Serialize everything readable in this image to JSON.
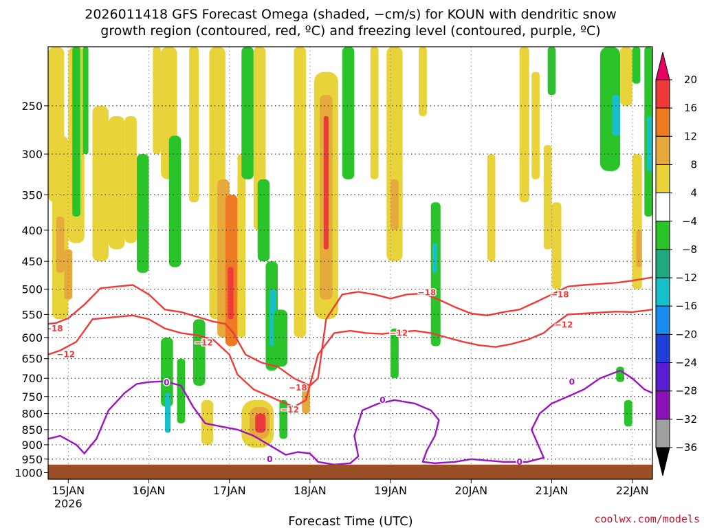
{
  "chart_data": {
    "type": "heatmap",
    "title_line1": "2026011418 GFS Forecast Omega (shaded, −cm/s) for KOUN with dendritic snow",
    "title_line2": "growth region (contoured, red, ºC) and freezing level (contoured, purple, ºC)",
    "xlabel": "Forecast Time (UTC)",
    "credit": "coolwx.com/models",
    "x_ticks": [
      {
        "day": 15,
        "label": "15JAN"
      },
      {
        "day": 16,
        "label": "16JAN"
      },
      {
        "day": 17,
        "label": "17JAN"
      },
      {
        "day": 18,
        "label": "18JAN"
      },
      {
        "day": 19,
        "label": "19JAN"
      },
      {
        "day": 20,
        "label": "20JAN"
      },
      {
        "day": 21,
        "label": "21JAN"
      },
      {
        "day": 22,
        "label": "22JAN"
      }
    ],
    "x_year_label": "2026",
    "xlim_days": [
      14.75,
      22.25
    ],
    "y_ticks": [
      250,
      300,
      350,
      400,
      450,
      500,
      550,
      600,
      650,
      700,
      750,
      800,
      850,
      900,
      950,
      1000
    ],
    "ylim_hpa": [
      200,
      1025
    ],
    "y_scale": "log-pressure",
    "grid": "dotted",
    "surface_pressure_hpa": 970,
    "surface_color": "#9b4f26",
    "colorbar": {
      "levels": [
        -36,
        -32,
        -28,
        -24,
        -20,
        -16,
        -12,
        -8,
        -4,
        4,
        8,
        12,
        16,
        20
      ],
      "labels": [
        "20",
        "16",
        "12",
        "8",
        "4",
        "−4",
        "−8",
        "−12",
        "−16",
        "−20",
        "−24",
        "−28",
        "−32",
        "−36"
      ],
      "colors_top_to_bottom": [
        "#e60063",
        "#ef3a3a",
        "#ee7a22",
        "#e6aa3c",
        "#e8d43a",
        "#ffffff",
        "#2ac42a",
        "#1eaa7e",
        "#17c0c8",
        "#1a8cf0",
        "#1f3fd8",
        "#5a1ed0",
        "#8a10b8",
        "#a0a0a0",
        "#000000"
      ]
    },
    "omega_cells": [
      {
        "x0": 14.75,
        "x1": 14.95,
        "p0": 200,
        "p1": 360,
        "value": 5
      },
      {
        "x0": 14.8,
        "x1": 15.0,
        "p0": 280,
        "p1": 560,
        "value": 6
      },
      {
        "x0": 14.85,
        "x1": 14.95,
        "p0": 380,
        "p1": 470,
        "value": 10
      },
      {
        "x0": 14.95,
        "x1": 15.05,
        "p0": 430,
        "p1": 520,
        "value": 9
      },
      {
        "x0": 15.0,
        "x1": 15.2,
        "p0": 200,
        "p1": 420,
        "value": 6
      },
      {
        "x0": 15.05,
        "x1": 15.15,
        "p0": 200,
        "p1": 380,
        "value": -6
      },
      {
        "x0": 15.18,
        "x1": 15.25,
        "p0": 200,
        "p1": 300,
        "value": -6
      },
      {
        "x0": 15.3,
        "x1": 15.5,
        "p0": 250,
        "p1": 450,
        "value": 5
      },
      {
        "x0": 15.5,
        "x1": 15.7,
        "p0": 260,
        "p1": 430,
        "value": 5
      },
      {
        "x0": 15.7,
        "x1": 15.85,
        "p0": 260,
        "p1": 420,
        "value": 5
      },
      {
        "x0": 15.85,
        "x1": 16.0,
        "p0": 300,
        "p1": 470,
        "value": -6
      },
      {
        "x0": 16.05,
        "x1": 16.15,
        "p0": 200,
        "p1": 300,
        "value": 5
      },
      {
        "x0": 16.15,
        "x1": 16.35,
        "p0": 200,
        "p1": 330,
        "value": 6
      },
      {
        "x0": 16.25,
        "x1": 16.4,
        "p0": 280,
        "p1": 460,
        "value": -6
      },
      {
        "x0": 16.15,
        "x1": 16.3,
        "p0": 600,
        "p1": 780,
        "value": -6
      },
      {
        "x0": 16.2,
        "x1": 16.27,
        "p0": 740,
        "p1": 860,
        "value": -13
      },
      {
        "x0": 16.35,
        "x1": 16.45,
        "p0": 650,
        "p1": 830,
        "value": -6
      },
      {
        "x0": 16.5,
        "x1": 16.62,
        "p0": 200,
        "p1": 360,
        "value": 6
      },
      {
        "x0": 16.55,
        "x1": 16.7,
        "p0": 560,
        "p1": 720,
        "value": -6
      },
      {
        "x0": 16.65,
        "x1": 16.8,
        "p0": 760,
        "p1": 900,
        "value": 5
      },
      {
        "x0": 16.75,
        "x1": 16.95,
        "p0": 200,
        "p1": 560,
        "value": 5
      },
      {
        "x0": 16.85,
        "x1": 17.0,
        "p0": 330,
        "p1": 600,
        "value": 10
      },
      {
        "x0": 16.95,
        "x1": 17.1,
        "p0": 350,
        "p1": 620,
        "value": 14
      },
      {
        "x0": 16.98,
        "x1": 17.05,
        "p0": 460,
        "p1": 560,
        "value": 19
      },
      {
        "x0": 17.1,
        "x1": 17.2,
        "p0": 300,
        "p1": 600,
        "value": 6
      },
      {
        "x0": 17.15,
        "x1": 17.3,
        "p0": 200,
        "p1": 330,
        "value": -6
      },
      {
        "x0": 17.3,
        "x1": 17.45,
        "p0": 200,
        "p1": 400,
        "value": 5
      },
      {
        "x0": 17.35,
        "x1": 17.5,
        "p0": 330,
        "p1": 450,
        "value": -6
      },
      {
        "x0": 17.45,
        "x1": 17.6,
        "p0": 450,
        "p1": 680,
        "value": -6
      },
      {
        "x0": 17.5,
        "x1": 17.58,
        "p0": 500,
        "p1": 620,
        "value": -13
      },
      {
        "x0": 17.55,
        "x1": 17.72,
        "p0": 540,
        "p1": 670,
        "value": -6
      },
      {
        "x0": 17.15,
        "x1": 17.55,
        "p0": 760,
        "p1": 910,
        "value": 6
      },
      {
        "x0": 17.25,
        "x1": 17.5,
        "p0": 780,
        "p1": 880,
        "value": 10
      },
      {
        "x0": 17.32,
        "x1": 17.45,
        "p0": 800,
        "p1": 860,
        "value": 17
      },
      {
        "x0": 17.62,
        "x1": 17.72,
        "p0": 760,
        "p1": 880,
        "value": -6
      },
      {
        "x0": 17.8,
        "x1": 17.95,
        "p0": 200,
        "p1": 600,
        "value": 5
      },
      {
        "x0": 17.9,
        "x1": 18.0,
        "p0": 720,
        "p1": 800,
        "value": 8
      },
      {
        "x0": 18.05,
        "x1": 18.35,
        "p0": 220,
        "p1": 560,
        "value": 6
      },
      {
        "x0": 18.12,
        "x1": 18.28,
        "p0": 240,
        "p1": 520,
        "value": 11
      },
      {
        "x0": 18.17,
        "x1": 18.23,
        "p0": 260,
        "p1": 430,
        "value": 19
      },
      {
        "x0": 18.4,
        "x1": 18.55,
        "p0": 200,
        "p1": 330,
        "value": -6
      },
      {
        "x0": 18.75,
        "x1": 18.85,
        "p0": 200,
        "p1": 330,
        "value": 5
      },
      {
        "x0": 18.95,
        "x1": 19.15,
        "p0": 200,
        "p1": 450,
        "value": 5
      },
      {
        "x0": 19.0,
        "x1": 19.1,
        "p0": 330,
        "p1": 400,
        "value": 9
      },
      {
        "x0": 19.0,
        "x1": 19.1,
        "p0": 580,
        "p1": 700,
        "value": -6
      },
      {
        "x0": 19.35,
        "x1": 19.45,
        "p0": 200,
        "p1": 260,
        "value": 5
      },
      {
        "x0": 19.5,
        "x1": 19.62,
        "p0": 360,
        "p1": 620,
        "value": -6
      },
      {
        "x0": 19.52,
        "x1": 19.58,
        "p0": 420,
        "p1": 470,
        "value": -13
      },
      {
        "x0": 20.2,
        "x1": 20.3,
        "p0": 300,
        "p1": 450,
        "value": 5
      },
      {
        "x0": 20.6,
        "x1": 20.72,
        "p0": 200,
        "p1": 360,
        "value": 5
      },
      {
        "x0": 20.75,
        "x1": 20.85,
        "p0": 220,
        "p1": 330,
        "value": 5
      },
      {
        "x0": 20.9,
        "x1": 21.0,
        "p0": 290,
        "p1": 430,
        "value": 5
      },
      {
        "x0": 21.0,
        "x1": 21.12,
        "p0": 360,
        "p1": 500,
        "value": 5
      },
      {
        "x0": 20.95,
        "x1": 21.05,
        "p0": 200,
        "p1": 240,
        "value": -6
      },
      {
        "x0": 21.6,
        "x1": 21.85,
        "p0": 200,
        "p1": 320,
        "value": -6
      },
      {
        "x0": 21.75,
        "x1": 21.85,
        "p0": 240,
        "p1": 280,
        "value": -13
      },
      {
        "x0": 21.85,
        "x1": 22.0,
        "p0": 200,
        "p1": 250,
        "value": 5
      },
      {
        "x0": 22.0,
        "x1": 22.12,
        "p0": 300,
        "p1": 500,
        "value": 5
      },
      {
        "x0": 22.05,
        "x1": 22.12,
        "p0": 400,
        "p1": 460,
        "value": 10
      },
      {
        "x0": 22.0,
        "x1": 22.1,
        "p0": 200,
        "p1": 230,
        "value": -6
      },
      {
        "x0": 22.15,
        "x1": 22.25,
        "p0": 200,
        "p1": 380,
        "value": -6
      },
      {
        "x0": 22.18,
        "x1": 22.25,
        "p0": 260,
        "p1": 320,
        "value": -13
      },
      {
        "x0": 21.8,
        "x1": 21.9,
        "p0": 670,
        "p1": 710,
        "value": -6
      },
      {
        "x0": 21.9,
        "x1": 22.0,
        "p0": 760,
        "p1": 840,
        "value": -6
      }
    ],
    "contours": [
      {
        "name": "−18",
        "color": "#ef3a3a",
        "points": [
          [
            14.75,
            570
          ],
          [
            14.85,
            568
          ],
          [
            15.0,
            558
          ],
          [
            15.2,
            530
          ],
          [
            15.4,
            498
          ],
          [
            15.6,
            495
          ],
          [
            15.8,
            492
          ],
          [
            16.0,
            510
          ],
          [
            16.2,
            540
          ],
          [
            16.4,
            545
          ],
          [
            16.6,
            555
          ],
          [
            16.8,
            565
          ],
          [
            16.95,
            570
          ],
          [
            17.05,
            590
          ],
          [
            17.2,
            640
          ],
          [
            17.4,
            660
          ],
          [
            17.6,
            670
          ],
          [
            17.8,
            700
          ],
          [
            18.0,
            720
          ],
          [
            18.1,
            700
          ],
          [
            18.2,
            560
          ],
          [
            18.4,
            510
          ],
          [
            18.6,
            505
          ],
          [
            18.8,
            510
          ],
          [
            19.0,
            518
          ],
          [
            19.2,
            510
          ],
          [
            19.4,
            508
          ],
          [
            19.6,
            520
          ],
          [
            19.8,
            535
          ],
          [
            20.0,
            548
          ],
          [
            20.2,
            552
          ],
          [
            20.4,
            545
          ],
          [
            20.6,
            540
          ],
          [
            20.8,
            525
          ],
          [
            21.0,
            510
          ],
          [
            21.2,
            495
          ],
          [
            21.4,
            492
          ],
          [
            21.6,
            490
          ],
          [
            21.8,
            488
          ],
          [
            22.0,
            484
          ],
          [
            22.25,
            478
          ]
        ],
        "labels": [
          {
            "x": 14.82,
            "p": 580
          },
          {
            "x": 17.85,
            "p": 726
          },
          {
            "x": 19.45,
            "p": 506
          },
          {
            "x": 21.1,
            "p": 510
          }
        ]
      },
      {
        "name": "−12",
        "color": "#ef3a3a",
        "points": [
          [
            14.75,
            640
          ],
          [
            14.9,
            630
          ],
          [
            15.1,
            610
          ],
          [
            15.3,
            560
          ],
          [
            15.6,
            555
          ],
          [
            15.8,
            552
          ],
          [
            16.0,
            560
          ],
          [
            16.2,
            580
          ],
          [
            16.4,
            590
          ],
          [
            16.6,
            595
          ],
          [
            16.8,
            605
          ],
          [
            17.0,
            640
          ],
          [
            17.1,
            690
          ],
          [
            17.3,
            730
          ],
          [
            17.6,
            760
          ],
          [
            17.8,
            780
          ],
          [
            17.95,
            760
          ],
          [
            18.1,
            640
          ],
          [
            18.3,
            590
          ],
          [
            18.5,
            585
          ],
          [
            18.7,
            590
          ],
          [
            18.9,
            592
          ],
          [
            19.1,
            588
          ],
          [
            19.3,
            585
          ],
          [
            19.5,
            590
          ],
          [
            19.7,
            600
          ],
          [
            19.9,
            610
          ],
          [
            20.1,
            618
          ],
          [
            20.3,
            622
          ],
          [
            20.5,
            615
          ],
          [
            20.7,
            605
          ],
          [
            20.9,
            590
          ],
          [
            21.0,
            575
          ],
          [
            21.2,
            550
          ],
          [
            21.4,
            548
          ],
          [
            21.6,
            546
          ],
          [
            21.8,
            544
          ],
          [
            22.0,
            545
          ],
          [
            22.25,
            540
          ]
        ],
        "labels": [
          {
            "x": 14.97,
            "p": 640
          },
          {
            "x": 16.68,
            "p": 612
          },
          {
            "x": 17.75,
            "p": 788
          },
          {
            "x": 19.1,
            "p": 590
          },
          {
            "x": 21.15,
            "p": 572
          }
        ]
      },
      {
        "name": "0",
        "color": "#9b12c0",
        "points": [
          [
            14.75,
            880
          ],
          [
            14.9,
            870
          ],
          [
            15.1,
            900
          ],
          [
            15.2,
            930
          ],
          [
            15.35,
            880
          ],
          [
            15.5,
            790
          ],
          [
            15.7,
            740
          ],
          [
            15.85,
            715
          ],
          [
            16.0,
            710
          ],
          [
            16.2,
            708
          ],
          [
            16.4,
            720
          ],
          [
            16.55,
            780
          ],
          [
            16.7,
            830
          ],
          [
            16.9,
            840
          ],
          [
            17.1,
            850
          ],
          [
            17.3,
            870
          ],
          [
            17.55,
            910
          ],
          [
            17.7,
            935
          ],
          [
            17.85,
            925
          ],
          [
            18.0,
            930
          ],
          [
            18.1,
            960
          ],
          [
            18.3,
            970
          ],
          [
            18.5,
            965
          ],
          [
            18.6,
            940
          ],
          [
            18.55,
            870
          ],
          [
            18.65,
            790
          ],
          [
            18.85,
            770
          ],
          [
            19.05,
            760
          ],
          [
            19.3,
            770
          ],
          [
            19.5,
            790
          ],
          [
            19.6,
            820
          ],
          [
            19.55,
            870
          ],
          [
            19.45,
            920
          ],
          [
            19.4,
            960
          ],
          [
            19.55,
            965
          ],
          [
            19.8,
            960
          ],
          [
            20.0,
            950
          ],
          [
            20.2,
            955
          ],
          [
            20.4,
            960
          ],
          [
            20.7,
            960
          ],
          [
            20.9,
            945
          ],
          [
            20.75,
            850
          ],
          [
            20.85,
            800
          ],
          [
            21.0,
            770
          ],
          [
            21.2,
            750
          ],
          [
            21.4,
            730
          ],
          [
            21.6,
            700
          ],
          [
            21.85,
            680
          ],
          [
            22.0,
            700
          ],
          [
            22.15,
            730
          ],
          [
            22.25,
            740
          ]
        ],
        "labels": [
          {
            "x": 16.22,
            "p": 712
          },
          {
            "x": 17.5,
            "p": 950
          },
          {
            "x": 18.9,
            "p": 760
          },
          {
            "x": 20.6,
            "p": 960
          },
          {
            "x": 21.25,
            "p": 710
          }
        ]
      }
    ]
  }
}
